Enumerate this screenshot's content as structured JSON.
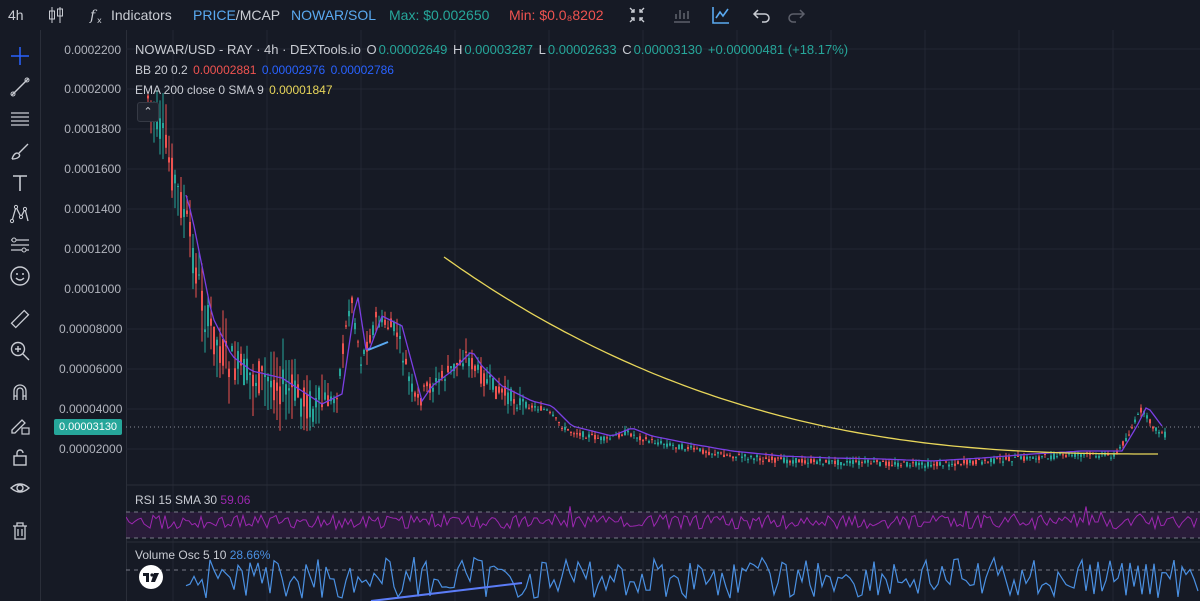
{
  "topbar": {
    "interval": "4h",
    "indicators_label": "Indicators",
    "price_label": "PRICE",
    "sep": "/",
    "mcap_label": "MCAP",
    "pair_toggle": "NOWAR/SOL",
    "max_label": "Max: $0.002650",
    "min_label": "Min: $0.0₈8202"
  },
  "legend": {
    "title": "NOWAR/USD - RAY · 4h · DEXTools.io",
    "o_key": "O",
    "o_val": "0.00002649",
    "h_key": "H",
    "h_val": "0.00003287",
    "l_key": "L",
    "l_val": "0.00002633",
    "c_key": "C",
    "c_val": "0.00003130",
    "change": "+0.00000481 (+18.17%)",
    "bb_label": "BB 20 0.2",
    "bb_val1": "0.00002881",
    "bb_val2": "0.00002976",
    "bb_val3": "0.00002786",
    "ema_label": "EMA 200 close 0 SMA 9",
    "ema_val": "0.00001847"
  },
  "price_axis": [
    "0.0002200",
    "0.0002000",
    "0.0001800",
    "0.0001600",
    "0.0001400",
    "0.0001200",
    "0.0001000",
    "0.00008000",
    "0.00006000",
    "0.00004000",
    "0.00002000"
  ],
  "current_price": "0.00003130",
  "rsi": {
    "label": "RSI 15 SMA 30",
    "value": "59.06"
  },
  "volosc": {
    "label": "Volume Osc 5 10",
    "value": "28.66%"
  },
  "colors": {
    "bg": "#161a25",
    "up": "#26a69a",
    "down": "#ef5350",
    "ema": "#e8d65a",
    "bb": "#7b3fe4",
    "rsi": "#9c27b0",
    "vol": "#4a90e2",
    "accent": "#2962ff"
  },
  "icons": {
    "topbar": [
      "candles-icon",
      "fx-icon",
      "compress-icon",
      "bar-chart-icon",
      "line-chart-icon",
      "undo-icon",
      "redo-icon"
    ],
    "left_toolbar": [
      "crosshair-icon",
      "trend-line-icon",
      "horizontal-lines-icon",
      "brush-icon",
      "text-icon",
      "pattern-icon",
      "measure-lines-icon",
      "emoji-icon",
      "ruler-icon",
      "zoom-icon",
      "magnet-icon",
      "lock-pencil-icon",
      "lock-icon",
      "eye-icon",
      "trash-icon"
    ]
  }
}
